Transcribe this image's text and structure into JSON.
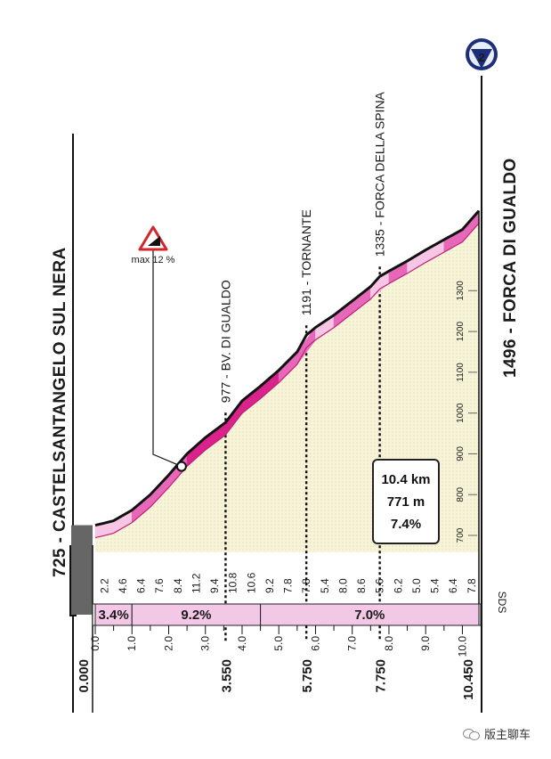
{
  "chart_data": {
    "type": "area",
    "start": {
      "name": "725 - CASTELSANTANGELO SUL NERA",
      "km_label": "0.000"
    },
    "finish": {
      "name": "1496 - FORCA DI GUALDO",
      "km_label": "10.450",
      "category_badge": "2"
    },
    "summit_points": [
      {
        "label": "977 - BV. DI GUALDO",
        "km": 3.55,
        "km_label": "3.550",
        "altitude": 977
      },
      {
        "label": "1191 - TORNANTE",
        "km": 5.75,
        "km_label": "5.750",
        "altitude": 1191
      },
      {
        "label": "1335 - FORCA DELLA SPINA",
        "km": 7.75,
        "km_label": "7.750",
        "altitude": 1335
      }
    ],
    "profile": {
      "km": [
        0,
        0.2,
        0.5,
        1.0,
        1.5,
        2.0,
        2.5,
        3.0,
        3.55,
        4.0,
        4.5,
        5.0,
        5.5,
        5.75,
        6.0,
        6.5,
        7.0,
        7.5,
        7.75,
        8.0,
        8.5,
        9.0,
        9.5,
        10.0,
        10.45
      ],
      "altitude": [
        725,
        729,
        736,
        762,
        800,
        848,
        900,
        940,
        977,
        1030,
        1066,
        1105,
        1150,
        1191,
        1210,
        1240,
        1275,
        1310,
        1335,
        1348,
        1373,
        1400,
        1425,
        1450,
        1496
      ]
    },
    "km_axis": {
      "ticks": [
        "0.0",
        "1.0",
        "2.0",
        "3.0",
        "4.0",
        "5.0",
        "6.0",
        "7.0",
        "8.0",
        "9.0",
        "10.0"
      ],
      "min": 0,
      "max": 10.45
    },
    "altitude_axis": {
      "ticks": [
        "700",
        "800",
        "900",
        "1000",
        "1100",
        "1200",
        "1300"
      ],
      "min": 640,
      "max": 1500
    },
    "segment_gradients": [
      "2.2",
      "4.6",
      "6.4",
      "7.6",
      "8.4",
      "11.2",
      "9.4",
      "10.8",
      "10.6",
      "9.2",
      "7.8",
      "7.8",
      "5.4",
      "8.0",
      "8.6",
      "5.6",
      "6.2",
      "5.0",
      "5.4",
      "6.4",
      "7.8"
    ],
    "gradient_bands": [
      {
        "label": "3.4%",
        "from_km": 0,
        "to_km": 1.0
      },
      {
        "label": "9.2%",
        "from_km": 1.0,
        "to_km": 4.5
      },
      {
        "label": "7.0%",
        "from_km": 4.5,
        "to_km": 10.45
      }
    ],
    "max_gradient": {
      "label": "max 12 %",
      "km": 2.35
    },
    "sds_label": "SDS",
    "colors": {
      "profile_dark": "#d9228a",
      "profile_mid": "#e768b8",
      "profile_light": "#f6c6e4",
      "fill": "#f7f4d8",
      "band_fill": "#f3c8e6"
    }
  },
  "stats": {
    "distance": "10.4 km",
    "elevation_gain": "771 m",
    "avg_gradient": "7.4%"
  },
  "watermark": "版主聊车"
}
